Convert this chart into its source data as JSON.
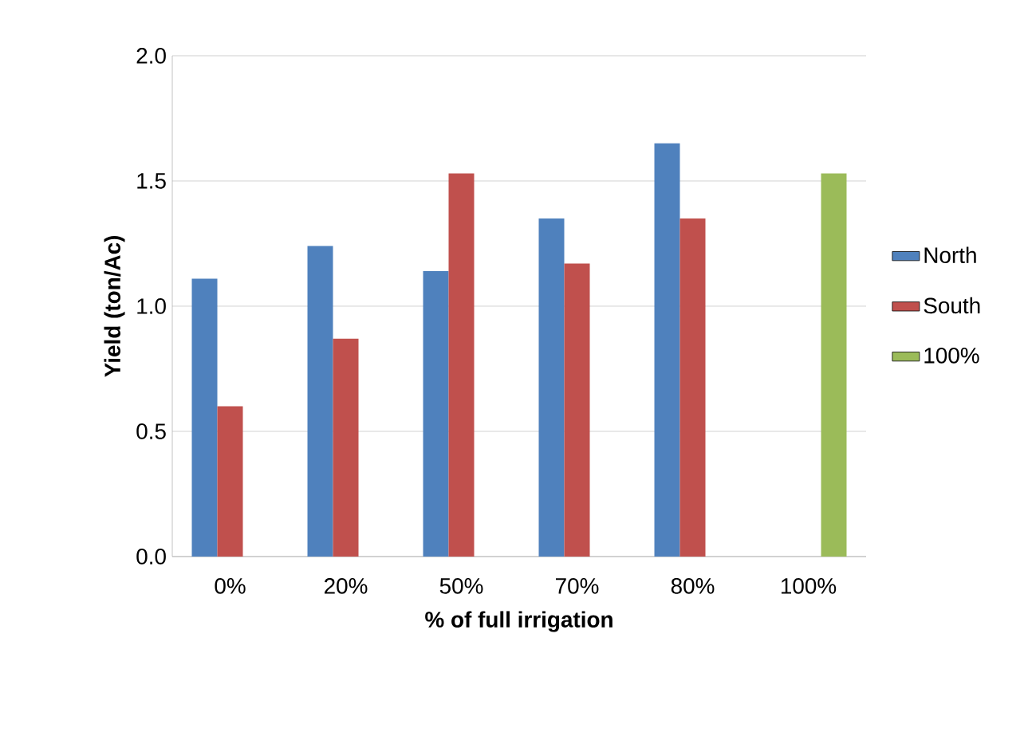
{
  "chart_data": {
    "type": "bar",
    "xlabel": "% of full irrigation",
    "ylabel": "Yield (ton/Ac)",
    "categories": [
      "0%",
      "20%",
      "50%",
      "70%",
      "80%",
      "100%"
    ],
    "series": [
      {
        "name": "North",
        "color": "#4f81bd",
        "values": [
          1.11,
          1.24,
          1.14,
          1.35,
          1.65,
          null
        ]
      },
      {
        "name": "South",
        "color": "#c0504d",
        "values": [
          0.6,
          0.87,
          1.53,
          1.17,
          1.35,
          null
        ]
      },
      {
        "name": "100%",
        "color": "#9bbb59",
        "values": [
          null,
          null,
          null,
          null,
          null,
          1.53
        ]
      }
    ],
    "ylim": [
      0,
      2
    ],
    "yticks": [
      {
        "value": 0,
        "label": "0.0"
      },
      {
        "value": 0.5,
        "label": "0.5"
      },
      {
        "value": 1,
        "label": "1.0"
      },
      {
        "value": 1.5,
        "label": "1.5"
      },
      {
        "value": 2,
        "label": "2.0"
      }
    ],
    "grid": "y",
    "legend": "right"
  }
}
